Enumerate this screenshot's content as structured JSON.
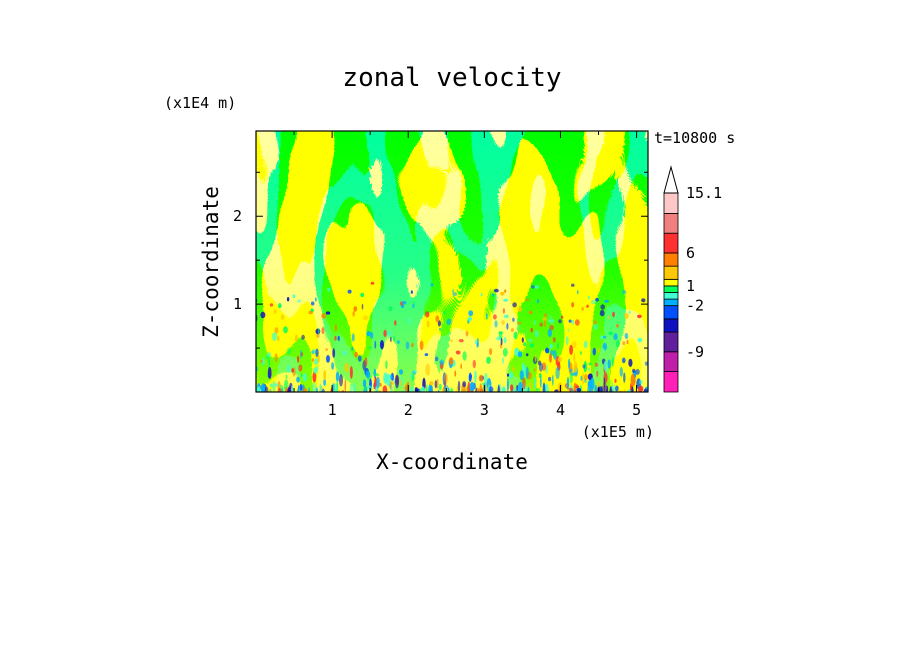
{
  "chart_data": {
    "type": "heatmap",
    "title": "zonal velocity",
    "xlabel": "X-coordinate",
    "ylabel": "Z-coordinate",
    "x_unit": "(x1E5 m)",
    "y_unit": "(x1E4 m)",
    "time_label": "t=10800 s",
    "xlim": [
      0,
      5.15
    ],
    "ylim": [
      0,
      2.97
    ],
    "x_ticks": [
      1,
      2,
      3,
      4,
      5
    ],
    "x_tick_labels": [
      "1",
      "2",
      "3",
      "4",
      "5"
    ],
    "y_ticks": [
      1,
      2
    ],
    "y_tick_labels": [
      "1",
      "2"
    ],
    "colorbar": {
      "levels": [
        -15.1,
        -12,
        -9,
        -6,
        -4,
        -2,
        -1,
        0,
        1,
        2,
        4,
        6,
        9,
        12,
        15.1
      ],
      "labels": [
        "15.1",
        "6",
        "1",
        "-2",
        "-9"
      ],
      "label_values": [
        15.1,
        6,
        1,
        -2,
        -9
      ],
      "colors": [
        "#ff20b8",
        "#c020a8",
        "#60209c",
        "#1010c0",
        "#0050ff",
        "#00b0ff",
        "#40ffd0",
        "#00ff5a",
        "#ffff00",
        "#ffc800",
        "#ff8000",
        "#ff3030",
        "#f08080",
        "#ffc8c8",
        "#ffffff"
      ]
    }
  }
}
